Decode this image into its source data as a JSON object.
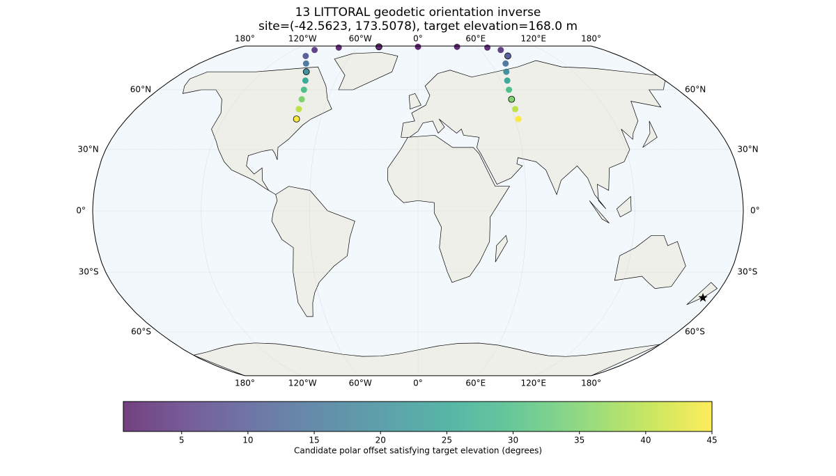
{
  "chart_data": {
    "type": "map",
    "title": "13 LITTORAL geodetic orientation inverse",
    "subtitle": "site=(-42.5623, 173.5078), target elevation=168.0 m",
    "projection": "robinson",
    "lon_ticks": [
      {
        "value": -180,
        "label": "180°"
      },
      {
        "value": -120,
        "label": "120°W"
      },
      {
        "value": -60,
        "label": "60°W"
      },
      {
        "value": 0,
        "label": "0°"
      },
      {
        "value": 60,
        "label": "60°E"
      },
      {
        "value": 120,
        "label": "120°E"
      },
      {
        "value": 180,
        "label": "180°"
      }
    ],
    "lat_ticks": [
      {
        "value": 60,
        "label": "60°N"
      },
      {
        "value": 30,
        "label": "30°N"
      },
      {
        "value": 0,
        "label": "0°"
      },
      {
        "value": -30,
        "label": "30°S"
      },
      {
        "value": -60,
        "label": "60°S"
      }
    ],
    "site": {
      "lon": 173.5078,
      "lat": -42.5623
    },
    "track": {
      "lon": [
        -75,
        -76,
        -77,
        -79,
        -82,
        -86,
        -92,
        -100,
        -100,
        -80,
        -40,
        0,
        40,
        70,
        80,
        80,
        72,
        68,
        65,
        63,
        62,
        62,
        62
      ],
      "lat": [
        45,
        50,
        55,
        60,
        65,
        70,
        75,
        80,
        85,
        88,
        89,
        89,
        89,
        88,
        85,
        80,
        75,
        70,
        65,
        60,
        55,
        50,
        45
      ],
      "values": [
        45,
        40,
        35,
        30,
        25,
        20,
        15,
        10,
        5,
        2,
        1,
        1,
        1,
        2,
        5,
        10,
        15,
        20,
        25,
        30,
        35,
        40,
        45
      ]
    },
    "colormap": "viridis",
    "clim": [
      0.6,
      45
    ],
    "colorbar_ticks": [
      5,
      10,
      15,
      20,
      25,
      30,
      35,
      40,
      45
    ],
    "colorbar_label": "Candidate polar offset satisfying target elevation (degrees)"
  }
}
